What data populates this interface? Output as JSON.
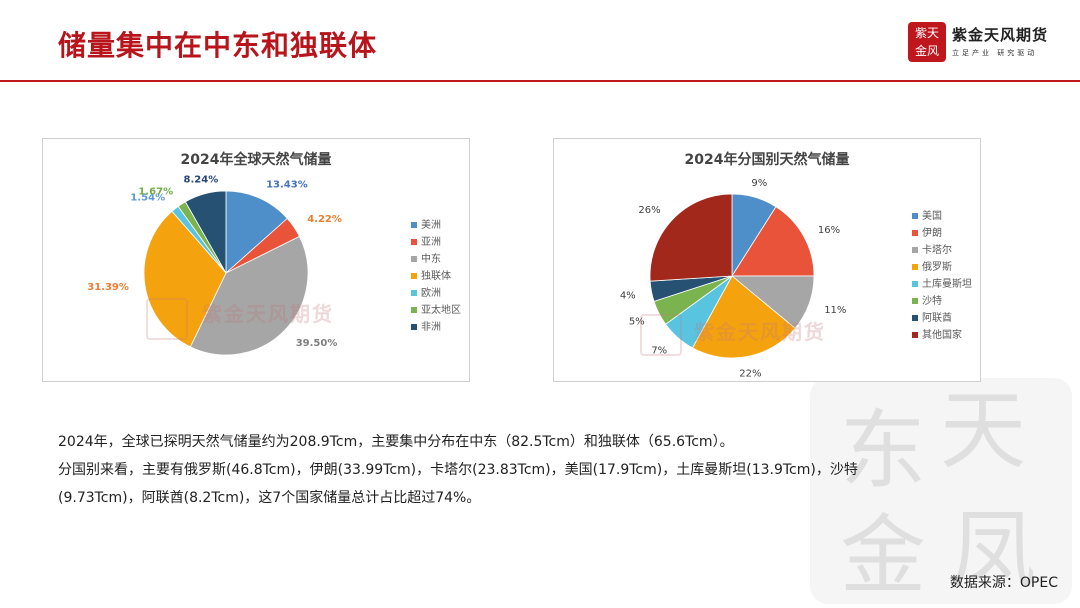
{
  "header": {
    "title": "储量集中在中东和独联体",
    "logo_name": "紫金天风期货",
    "logo_slogan": "立足产业 研究驱动",
    "logo_seal_text": "紫天金风"
  },
  "watermark": {
    "text": "紫金天风期货"
  },
  "chart_data": [
    {
      "type": "pie",
      "title": "2024年全球天然气储量",
      "categories": [
        "美洲",
        "亚洲",
        "中东",
        "独联体",
        "欧洲",
        "亚太地区",
        "非洲"
      ],
      "values": [
        13.43,
        4.22,
        39.5,
        31.39,
        1.54,
        1.67,
        8.24
      ],
      "labels": [
        "13.43%",
        "4.22%",
        "39.50%",
        "31.39%",
        "1.54%",
        "1.67%",
        "8.24%"
      ],
      "colors": [
        "#4f8fc9",
        "#e8533a",
        "#a6a6a6",
        "#f5a20f",
        "#58c4df",
        "#7bb44f",
        "#275173"
      ],
      "label_colors": [
        "#4472c4",
        "#ed7d31",
        "#7f7f7f",
        "#ed7d31",
        "#5b9bd5",
        "#70ad47",
        "#264478"
      ],
      "legend_position": "right"
    },
    {
      "type": "pie",
      "title": "2024年分国别天然气储量",
      "categories": [
        "美国",
        "伊朗",
        "卡塔尔",
        "俄罗斯",
        "土库曼斯坦",
        "沙特",
        "阿联酋",
        "其他国家"
      ],
      "values": [
        9,
        16,
        11,
        22,
        7,
        5,
        4,
        26
      ],
      "labels": [
        "9%",
        "16%",
        "11%",
        "22%",
        "7%",
        "5%",
        "4%",
        "26%"
      ],
      "colors": [
        "#4f8fc9",
        "#e8533a",
        "#a6a6a6",
        "#f5a20f",
        "#58c4df",
        "#7bb44f",
        "#275173",
        "#a3281c"
      ],
      "label_colors": [
        "#404040",
        "#404040",
        "#404040",
        "#404040",
        "#404040",
        "#404040",
        "#404040",
        "#404040"
      ],
      "legend_position": "right"
    }
  ],
  "summary": {
    "line1": "2024年，全球已探明天然气储量约为208.9Tcm，主要集中分布在中东（82.5Tcm）和独联体（65.6Tcm）。",
    "line2": "分国别来看，主要有俄罗斯(46.8Tcm)，伊朗(33.99Tcm)，卡塔尔(23.83Tcm)，美国(17.9Tcm)，土库曼斯坦(13.9Tcm)，沙特(9.73Tcm)，阿联酋(8.2Tcm)，这7个国家储量总计占比超过74%。"
  },
  "footer": {
    "source": "数据来源：OPEC"
  }
}
